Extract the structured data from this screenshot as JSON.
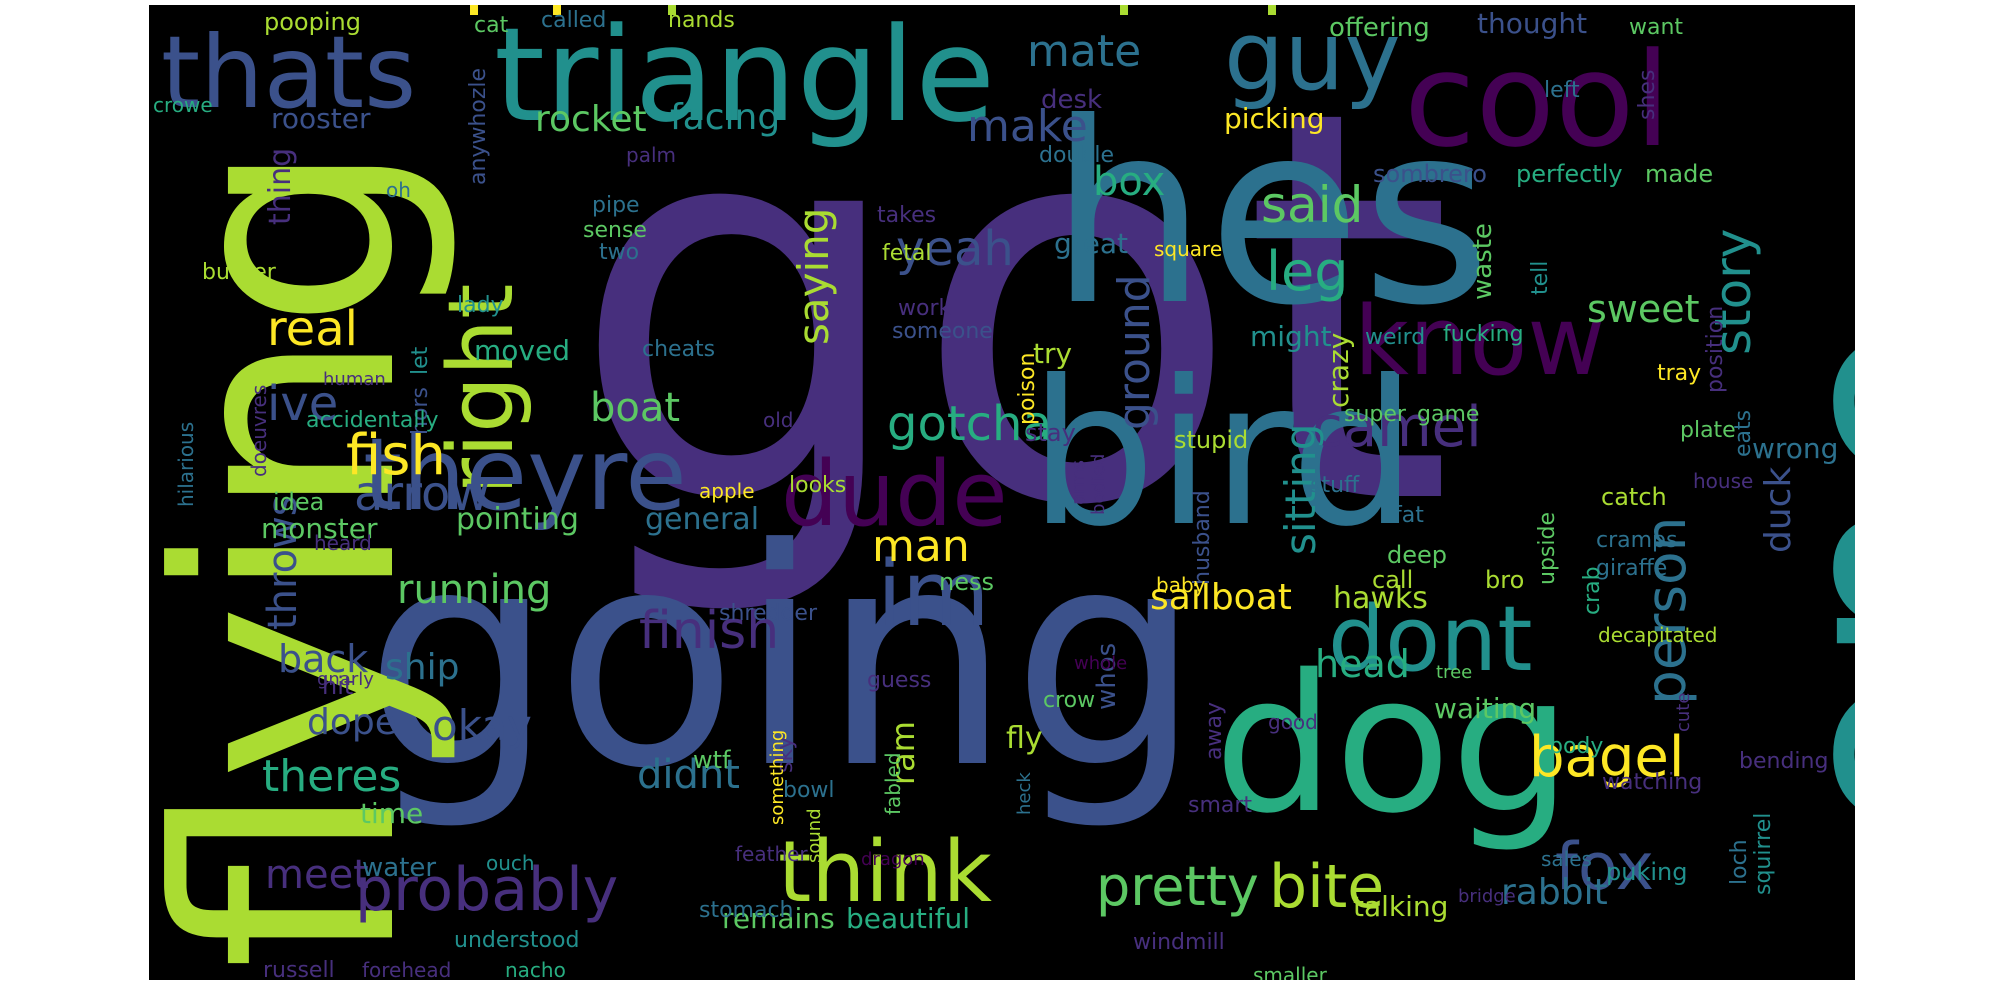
{
  "colors": {
    "background": "#000000",
    "page": "#ffffff",
    "palette": {
      "purple_dark": "#440154",
      "purple": "#472f7d",
      "indigo": "#3b518b",
      "blue": "#2c718e",
      "teal": "#21908d",
      "green_teal": "#27ad81",
      "green": "#5cc863",
      "lime": "#aadc32",
      "yellow": "#fde725"
    }
  },
  "words": [
    {
      "text": "got",
      "color": "#472f7d"
    },
    {
      "text": "going",
      "color": "#3b518b"
    },
    {
      "text": "flying",
      "color": "#aadc32"
    },
    {
      "text": "hes",
      "color": "#2c718e"
    },
    {
      "text": "one",
      "color": "#21908d"
    },
    {
      "text": "bird",
      "color": "#2c718e"
    },
    {
      "text": "dog",
      "color": "#27ad81"
    },
    {
      "text": "triangle",
      "color": "#21908d"
    },
    {
      "text": "cool",
      "color": "#440154"
    },
    {
      "text": "guy",
      "color": "#2c718e"
    },
    {
      "text": "thats",
      "color": "#3b518b"
    },
    {
      "text": "right",
      "color": "#aadc32"
    },
    {
      "text": "theyre",
      "color": "#3b518b"
    },
    {
      "text": "dude",
      "color": "#440154"
    },
    {
      "text": "im",
      "color": "#3b518b"
    },
    {
      "text": "know",
      "color": "#440154"
    },
    {
      "text": "dont",
      "color": "#21908d"
    },
    {
      "text": "think",
      "color": "#aadc32"
    },
    {
      "text": "fox",
      "color": "#3b518b"
    },
    {
      "text": "person",
      "color": "#2c718e"
    },
    {
      "text": "story",
      "color": "#21908d"
    },
    {
      "text": "bagel",
      "color": "#fde725"
    },
    {
      "text": "bite",
      "color": "#aadc32"
    },
    {
      "text": "probably",
      "color": "#472f7d"
    },
    {
      "text": "pretty",
      "color": "#5cc863"
    },
    {
      "text": "fish",
      "color": "#fde725"
    },
    {
      "text": "real",
      "color": "#fde725"
    },
    {
      "text": "leg",
      "color": "#27ad81"
    },
    {
      "text": "said",
      "color": "#5cc863"
    },
    {
      "text": "yeah",
      "color": "#3b518b"
    },
    {
      "text": "camel",
      "color": "#472f7d"
    },
    {
      "text": "gotcha",
      "color": "#27ad81"
    },
    {
      "text": "arrow",
      "color": "#3b518b"
    },
    {
      "text": "finish",
      "color": "#472f7d"
    },
    {
      "text": "saying",
      "color": "#aadc32"
    },
    {
      "text": "ground",
      "color": "#3b518b"
    },
    {
      "text": "sitting",
      "color": "#21908d"
    },
    {
      "text": "throws",
      "color": "#3b518b"
    },
    {
      "text": "ive",
      "color": "#3b518b"
    },
    {
      "text": "mate",
      "color": "#2c718e"
    },
    {
      "text": "make",
      "color": "#3b518b"
    },
    {
      "text": "rocket",
      "color": "#5cc863"
    },
    {
      "text": "facing",
      "color": "#21908d"
    },
    {
      "text": "boat",
      "color": "#5cc863"
    },
    {
      "text": "box",
      "color": "#27ad81"
    },
    {
      "text": "man",
      "color": "#fde725"
    },
    {
      "text": "sweet",
      "color": "#5cc863"
    },
    {
      "text": "running",
      "color": "#5cc863"
    },
    {
      "text": "sailboat",
      "color": "#fde725"
    },
    {
      "text": "head",
      "color": "#27ad81"
    },
    {
      "text": "theres",
      "color": "#27ad81"
    },
    {
      "text": "didnt",
      "color": "#2c718e"
    },
    {
      "text": "meet",
      "color": "#472f7d"
    },
    {
      "text": "okay",
      "color": "#3b518b"
    },
    {
      "text": "dope",
      "color": "#3b518b"
    },
    {
      "text": "back",
      "color": "#3b518b"
    },
    {
      "text": "ship",
      "color": "#2c718e"
    },
    {
      "text": "ram",
      "color": "#aadc32"
    },
    {
      "text": "rabbit",
      "color": "#2c718e"
    },
    {
      "text": "duck",
      "color": "#3b518b"
    },
    {
      "text": "thing",
      "color": "#472f7d"
    },
    {
      "text": "pointing",
      "color": "#5cc863"
    },
    {
      "text": "general",
      "color": "#2c718e"
    },
    {
      "text": "monster",
      "color": "#5cc863"
    },
    {
      "text": "remains",
      "color": "#5cc863"
    },
    {
      "text": "beautiful",
      "color": "#27ad81"
    },
    {
      "text": "talking",
      "color": "#aadc32"
    },
    {
      "text": "waiting",
      "color": "#5cc863"
    },
    {
      "text": "fly",
      "color": "#aadc32"
    },
    {
      "text": "hawks",
      "color": "#aadc32"
    },
    {
      "text": "wrong",
      "color": "#2c718e"
    },
    {
      "text": "crazy",
      "color": "#aadc32"
    },
    {
      "text": "try",
      "color": "#aadc32"
    },
    {
      "text": "might",
      "color": "#21908d"
    },
    {
      "text": "great",
      "color": "#2c718e"
    },
    {
      "text": "moved",
      "color": "#27ad81"
    },
    {
      "text": "whos",
      "color": "#3b518b"
    },
    {
      "text": "time",
      "color": "#5cc863"
    },
    {
      "text": "water",
      "color": "#2c718e"
    },
    {
      "text": "understood",
      "color": "#21908d"
    },
    {
      "text": "windmill",
      "color": "#472f7d"
    },
    {
      "text": "pooping",
      "color": "#aadc32"
    },
    {
      "text": "cat",
      "color": "#5cc863"
    },
    {
      "text": "called",
      "color": "#2c718e"
    },
    {
      "text": "hands",
      "color": "#aadc32"
    },
    {
      "text": "offering",
      "color": "#5cc863"
    },
    {
      "text": "thought",
      "color": "#3b518b"
    },
    {
      "text": "want",
      "color": "#5cc863"
    },
    {
      "text": "crowe",
      "color": "#27ad81"
    },
    {
      "text": "rooster",
      "color": "#3b518b"
    },
    {
      "text": "anywhozle",
      "color": "#3b518b"
    },
    {
      "text": "desk",
      "color": "#472f7d"
    },
    {
      "text": "left",
      "color": "#2c718e"
    },
    {
      "text": "shes",
      "color": "#472f7d"
    },
    {
      "text": "picking",
      "color": "#fde725"
    },
    {
      "text": "palm",
      "color": "#472f7d"
    },
    {
      "text": "double",
      "color": "#2c718e"
    },
    {
      "text": "sombrero",
      "color": "#3b518b"
    },
    {
      "text": "perfectly",
      "color": "#27ad81"
    },
    {
      "text": "made",
      "color": "#5cc863"
    },
    {
      "text": "oh",
      "color": "#2c718e"
    },
    {
      "text": "pipe",
      "color": "#2c718e"
    },
    {
      "text": "takes",
      "color": "#472f7d"
    },
    {
      "text": "sense",
      "color": "#5cc863"
    },
    {
      "text": "two",
      "color": "#2c718e"
    },
    {
      "text": "fetal",
      "color": "#aadc32"
    },
    {
      "text": "square",
      "color": "#fde725"
    },
    {
      "text": "waste",
      "color": "#5cc863"
    },
    {
      "text": "tell",
      "color": "#21908d"
    },
    {
      "text": "position",
      "color": "#472f7d"
    },
    {
      "text": "buttler",
      "color": "#aadc32"
    },
    {
      "text": "lady",
      "color": "#21908d"
    },
    {
      "text": "work",
      "color": "#472f7d"
    },
    {
      "text": "someone",
      "color": "#3b518b"
    },
    {
      "text": "weird",
      "color": "#21908d"
    },
    {
      "text": "fucking",
      "color": "#27ad81"
    },
    {
      "text": "hilarious",
      "color": "#2c718e"
    },
    {
      "text": "doeuvres",
      "color": "#472f7d"
    },
    {
      "text": "hors",
      "color": "#3b518b"
    },
    {
      "text": "let",
      "color": "#21908d"
    },
    {
      "text": "cheats",
      "color": "#2c718e"
    },
    {
      "text": "human",
      "color": "#472f7d"
    },
    {
      "text": "accidentally",
      "color": "#27ad81"
    },
    {
      "text": "old",
      "color": "#472f7d"
    },
    {
      "text": "poison",
      "color": "#fde725"
    },
    {
      "text": "stay",
      "color": "#472f7d"
    },
    {
      "text": "stupid",
      "color": "#aadc32"
    },
    {
      "text": "super",
      "color": "#5cc863"
    },
    {
      "text": "game",
      "color": "#5cc863"
    },
    {
      "text": "tray",
      "color": "#fde725"
    },
    {
      "text": "plate",
      "color": "#5cc863"
    },
    {
      "text": "eats",
      "color": "#2c718e"
    },
    {
      "text": "idea",
      "color": "#5cc863"
    },
    {
      "text": "apple",
      "color": "#fde725"
    },
    {
      "text": "looks",
      "color": "#aadc32"
    },
    {
      "text": "arms",
      "color": "#472f7d"
    },
    {
      "text": "bodied",
      "color": "#472f7d"
    },
    {
      "text": "stuff",
      "color": "#2c718e"
    },
    {
      "text": "fat",
      "color": "#2c718e"
    },
    {
      "text": "upside",
      "color": "#5cc863"
    },
    {
      "text": "catch",
      "color": "#aadc32"
    },
    {
      "text": "house",
      "color": "#472f7d"
    },
    {
      "text": "heard",
      "color": "#472f7d"
    },
    {
      "text": "husband",
      "color": "#3b518b"
    },
    {
      "text": "deep",
      "color": "#5cc863"
    },
    {
      "text": "cramps",
      "color": "#2c718e"
    },
    {
      "text": "giraffe",
      "color": "#2c718e"
    },
    {
      "text": "ness",
      "color": "#5cc863"
    },
    {
      "text": "call",
      "color": "#aadc32"
    },
    {
      "text": "baby",
      "color": "#fde725"
    },
    {
      "text": "bro",
      "color": "#aadc32"
    },
    {
      "text": "crab",
      "color": "#27ad81"
    },
    {
      "text": "shredder",
      "color": "#3b518b"
    },
    {
      "text": "gnarly",
      "color": "#472f7d"
    },
    {
      "text": "hit",
      "color": "#472f7d"
    },
    {
      "text": "guess",
      "color": "#472f7d"
    },
    {
      "text": "whole",
      "color": "#440154"
    },
    {
      "text": "tree",
      "color": "#5cc863"
    },
    {
      "text": "decapitated",
      "color": "#aadc32"
    },
    {
      "text": "crow",
      "color": "#5cc863"
    },
    {
      "text": "away",
      "color": "#472f7d"
    },
    {
      "text": "cute",
      "color": "#472f7d"
    },
    {
      "text": "good",
      "color": "#472f7d"
    },
    {
      "text": "body",
      "color": "#27ad81"
    },
    {
      "text": "bending",
      "color": "#472f7d"
    },
    {
      "text": "wtf",
      "color": "#5cc863"
    },
    {
      "text": "sky",
      "color": "#472f7d"
    },
    {
      "text": "something",
      "color": "#fde725"
    },
    {
      "text": "bowl",
      "color": "#2c718e"
    },
    {
      "text": "fabled",
      "color": "#5cc863"
    },
    {
      "text": "heck",
      "color": "#2c718e"
    },
    {
      "text": "smart",
      "color": "#472f7d"
    },
    {
      "text": "watching",
      "color": "#472f7d"
    },
    {
      "text": "sound",
      "color": "#aadc32"
    },
    {
      "text": "ouch",
      "color": "#21908d"
    },
    {
      "text": "feather",
      "color": "#472f7d"
    },
    {
      "text": "dragon",
      "color": "#440154"
    },
    {
      "text": "sales",
      "color": "#2c718e"
    },
    {
      "text": "loch",
      "color": "#2c718e"
    },
    {
      "text": "squirrel",
      "color": "#21908d"
    },
    {
      "text": "puking",
      "color": "#21908d"
    },
    {
      "text": "stomach",
      "color": "#2c718e"
    },
    {
      "text": "bridge",
      "color": "#472f7d"
    },
    {
      "text": "russell",
      "color": "#472f7d"
    },
    {
      "text": "forehead",
      "color": "#472f7d"
    },
    {
      "text": "nacho",
      "color": "#27ad81"
    },
    {
      "text": "smaller",
      "color": "#5cc863"
    }
  ]
}
